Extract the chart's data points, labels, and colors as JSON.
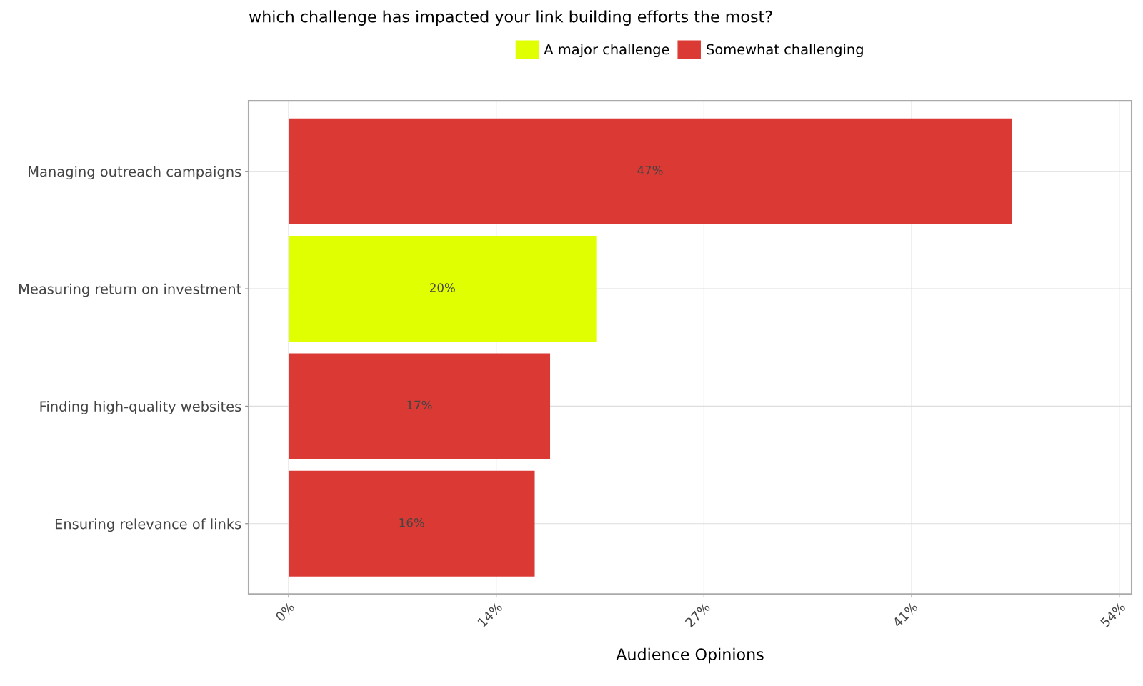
{
  "chart_data": {
    "type": "bar",
    "orientation": "horizontal",
    "stacked": true,
    "title": "which challenge has impacted your link building efforts the most?",
    "xlabel": "Audience Opinions",
    "categories": [
      "Managing outreach campaigns",
      "Measuring return on investment",
      "Finding high-quality websites",
      "Ensuring relevance of links"
    ],
    "series": [
      {
        "name": "A major challenge",
        "color": "#e0ff00",
        "values": [
          null,
          20,
          null,
          null
        ],
        "value_labels": [
          null,
          "20%",
          null,
          null
        ]
      },
      {
        "name": "Somewhat challenging",
        "color": "#db3a34",
        "values": [
          47,
          null,
          17,
          16
        ],
        "value_labels": [
          "47%",
          null,
          "17%",
          "16%"
        ]
      }
    ],
    "xlim": [
      -2.6,
      54.8
    ],
    "xticks": [
      {
        "value": 0,
        "label": "0%"
      },
      {
        "value": 13.5,
        "label": "14%"
      },
      {
        "value": 27,
        "label": "27%"
      },
      {
        "value": 40.5,
        "label": "41%"
      },
      {
        "value": 54,
        "label": "54%"
      }
    ],
    "grid": true,
    "legend": "top"
  }
}
